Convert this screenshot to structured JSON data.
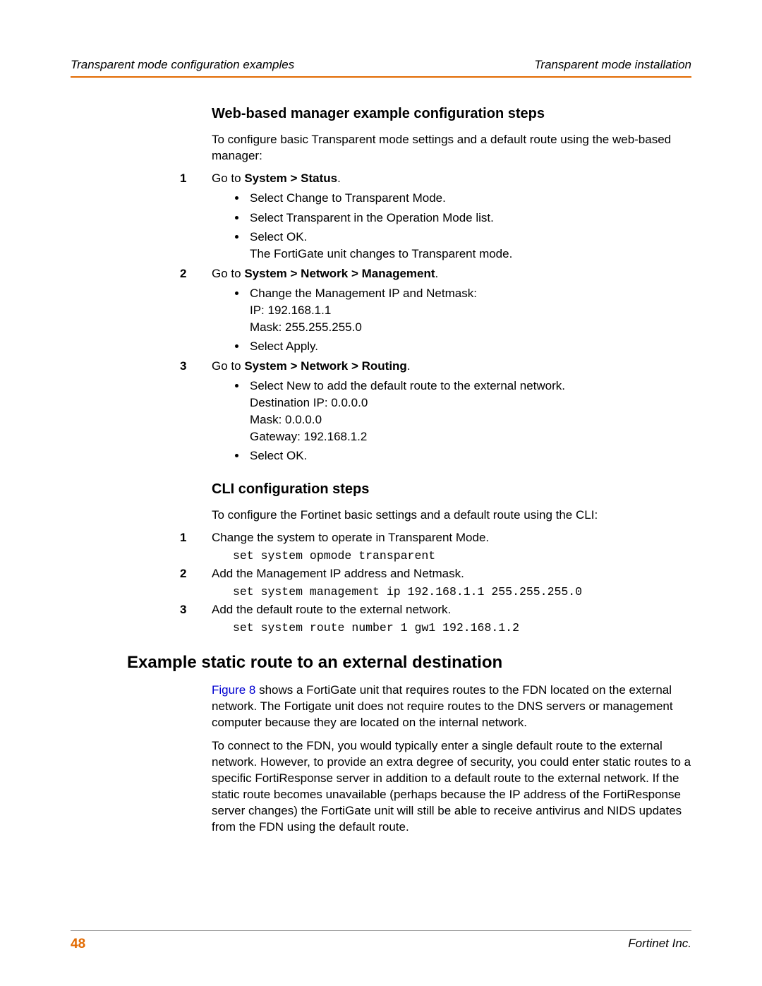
{
  "colors": {
    "accent": "#e26a00",
    "link": "#0000d0",
    "text": "#000000",
    "rule_gray": "#9a9a9a",
    "background": "#ffffff"
  },
  "header": {
    "left": "Transparent mode configuration examples",
    "right": "Transparent mode installation"
  },
  "section1": {
    "title": "Web-based manager example configuration steps",
    "intro": "To configure basic Transparent mode settings and a default route using the web-based manager:",
    "steps": [
      {
        "num": "1",
        "lead": "Go to ",
        "bold": "System > Status",
        "tail": ".",
        "bullets": [
          {
            "lines": [
              "Select Change to Transparent Mode."
            ]
          },
          {
            "lines": [
              "Select Transparent in the Operation Mode list."
            ]
          },
          {
            "lines": [
              "Select OK.",
              "The FortiGate unit changes to Transparent mode."
            ]
          }
        ]
      },
      {
        "num": "2",
        "lead": "Go to ",
        "bold": "System > Network > Management",
        "tail": ".",
        "bullets": [
          {
            "lines": [
              "Change the Management IP and Netmask:",
              "IP: 192.168.1.1",
              "Mask: 255.255.255.0"
            ]
          },
          {
            "lines": [
              "Select Apply."
            ]
          }
        ]
      },
      {
        "num": "3",
        "lead": "Go to ",
        "bold": "System > Network > Routing",
        "tail": ".",
        "bullets": [
          {
            "lines": [
              "Select New to add the default route to the external network.",
              "Destination IP: 0.0.0.0",
              "Mask: 0.0.0.0",
              "Gateway: 192.168.1.2"
            ]
          },
          {
            "lines": [
              "Select OK."
            ]
          }
        ]
      }
    ]
  },
  "section2": {
    "title": "CLI configuration steps",
    "intro": "To configure the Fortinet basic settings and a default route using the CLI:",
    "steps": [
      {
        "num": "1",
        "text": "Change the system to operate in Transparent Mode.",
        "code": "set system opmode transparent"
      },
      {
        "num": "2",
        "text": "Add the Management IP address and Netmask.",
        "code": "set system management ip 192.168.1.1 255.255.255.0"
      },
      {
        "num": "3",
        "text": "Add the default route to the external network.",
        "code": "set system route number 1 gw1 192.168.1.2"
      }
    ]
  },
  "section3": {
    "title": "Example static route to an external destination",
    "figure_ref": "Figure 8",
    "para1_after_ref": " shows a FortiGate unit that requires routes to the FDN located on the external network. The Fortigate unit does not require routes to the DNS servers or management computer because they are located on the internal network.",
    "para2": "To connect to the FDN, you would typically enter a single default route to the external network. However, to provide an extra degree of security, you could enter static routes to a specific FortiResponse server in addition to a default route to the external network. If the static route becomes unavailable (perhaps because the IP address of the FortiResponse server changes) the FortiGate unit will still be able to receive antivirus and NIDS updates from the FDN using the default route."
  },
  "footer": {
    "page_number": "48",
    "company": "Fortinet Inc."
  }
}
